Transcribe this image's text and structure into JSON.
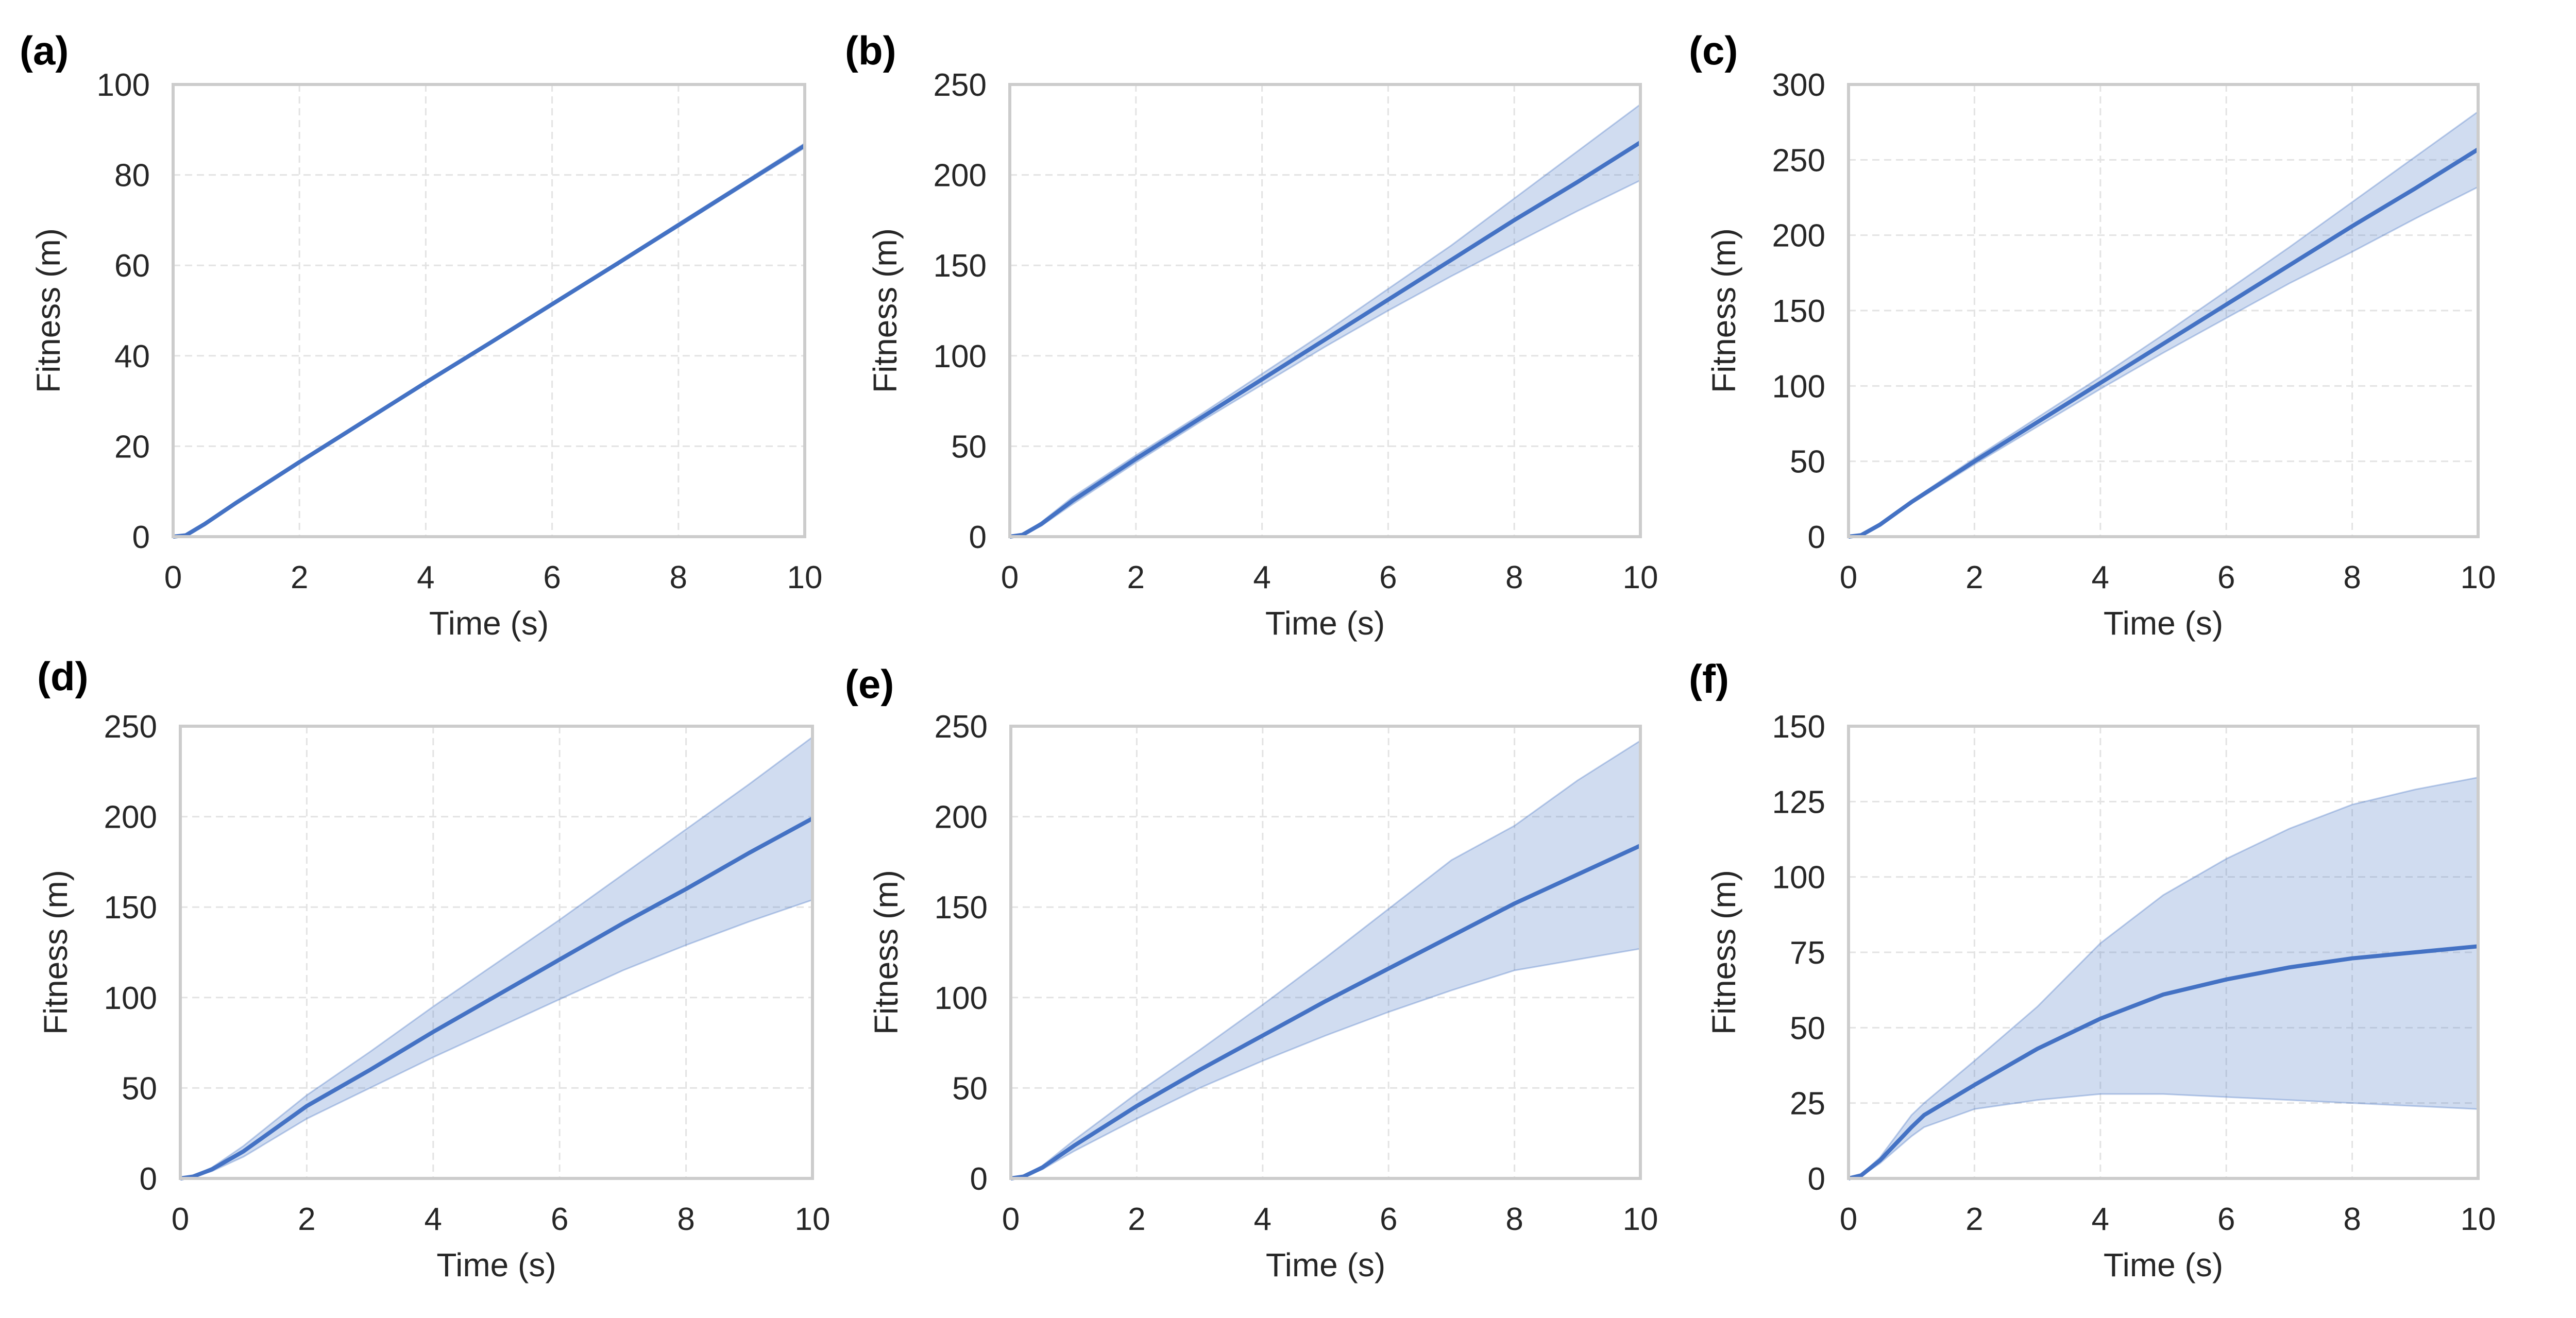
{
  "colors": {
    "line": "#4472C4",
    "band": "#4472C4",
    "grid": "#E3E3E3",
    "axis": "#CCCCCC",
    "text": "#262626"
  },
  "chart_data": [
    {
      "type": "line",
      "panel_label": "(a)",
      "xlabel": "Time (s)",
      "ylabel": "Fitness (m)",
      "xlim": [
        0,
        10
      ],
      "ylim": [
        0,
        100
      ],
      "xticks": [
        0,
        2,
        4,
        6,
        8,
        10
      ],
      "yticks": [
        0,
        20,
        40,
        60,
        80,
        100
      ],
      "grid": true,
      "series": [
        {
          "x": [
            0,
            0.2,
            0.5,
            1,
            2,
            3,
            4,
            5,
            6,
            7,
            8,
            9,
            10
          ],
          "y": [
            0,
            0.3,
            2.8,
            7.5,
            16.5,
            25.3,
            34.1,
            42.7,
            51.4,
            60.1,
            68.9,
            77.7,
            86.5
          ],
          "lower": [
            0,
            0.2,
            2.6,
            7.2,
            16.2,
            25.0,
            33.8,
            42.4,
            51.1,
            59.8,
            68.5,
            77.3,
            86.0
          ],
          "upper": [
            0,
            0.4,
            3.0,
            7.8,
            16.8,
            25.6,
            34.4,
            43.0,
            51.7,
            60.4,
            69.3,
            78.1,
            87.0
          ]
        }
      ]
    },
    {
      "type": "line",
      "panel_label": "(b)",
      "xlabel": "Time (s)",
      "ylabel": "Fitness (m)",
      "xlim": [
        0,
        10
      ],
      "ylim": [
        0,
        250
      ],
      "xticks": [
        0,
        2,
        4,
        6,
        8,
        10
      ],
      "yticks": [
        0,
        50,
        100,
        150,
        200,
        250
      ],
      "grid": true,
      "series": [
        {
          "x": [
            0,
            0.2,
            0.5,
            1,
            2,
            3,
            4,
            5,
            6,
            7,
            8,
            9,
            10
          ],
          "y": [
            0,
            1,
            7,
            20,
            43,
            65,
            87,
            109,
            131,
            153,
            175,
            196,
            218
          ],
          "lower": [
            0,
            0.8,
            6,
            18,
            41,
            63,
            84,
            105,
            125,
            144,
            162,
            180,
            197
          ],
          "upper": [
            0,
            1.2,
            8,
            22,
            45,
            67,
            90,
            113,
            137,
            161,
            187,
            213,
            239
          ]
        }
      ]
    },
    {
      "type": "line",
      "panel_label": "(c)",
      "xlabel": "Time (s)",
      "ylabel": "Fitness (m)",
      "xlim": [
        0,
        10
      ],
      "ylim": [
        0,
        300
      ],
      "xticks": [
        0,
        2,
        4,
        6,
        8,
        10
      ],
      "yticks": [
        0,
        50,
        100,
        150,
        200,
        250,
        300
      ],
      "grid": true,
      "series": [
        {
          "x": [
            0,
            0.2,
            0.5,
            1,
            2,
            3,
            4,
            5,
            6,
            7,
            8,
            9,
            10
          ],
          "y": [
            0,
            1,
            8,
            23,
            50,
            76,
            102,
            128,
            154,
            180,
            206,
            231,
            257
          ],
          "lower": [
            0,
            0.8,
            7,
            22,
            48,
            73,
            98,
            122,
            145,
            168,
            189,
            211,
            232
          ],
          "upper": [
            0,
            1.2,
            9,
            24,
            52,
            79,
            106,
            134,
            163,
            192,
            222,
            252,
            282
          ]
        }
      ]
    },
    {
      "type": "line",
      "panel_label": "(d)",
      "xlabel": "Time (s)",
      "ylabel": "Fitness (m)",
      "xlim": [
        0,
        10
      ],
      "ylim": [
        0,
        250
      ],
      "xticks": [
        0,
        2,
        4,
        6,
        8,
        10
      ],
      "yticks": [
        0,
        50,
        100,
        150,
        200,
        250
      ],
      "grid": true,
      "series": [
        {
          "x": [
            0,
            0.2,
            0.5,
            1,
            2,
            3,
            4,
            5,
            6,
            7,
            8,
            9,
            10
          ],
          "y": [
            0,
            1,
            5,
            15,
            40,
            60,
            81,
            101,
            121,
            141,
            160,
            180,
            199
          ],
          "lower": [
            0,
            0.8,
            4,
            12,
            33,
            50,
            67,
            83,
            99,
            115,
            129,
            142,
            154
          ],
          "upper": [
            0,
            1.2,
            6,
            18,
            46,
            70,
            95,
            119,
            143,
            168,
            193,
            218,
            244
          ]
        }
      ]
    },
    {
      "type": "line",
      "panel_label": "(e)",
      "xlabel": "Time (s)",
      "ylabel": "Fitness (m)",
      "xlim": [
        0,
        10
      ],
      "ylim": [
        0,
        250
      ],
      "xticks": [
        0,
        2,
        4,
        6,
        8,
        10
      ],
      "yticks": [
        0,
        50,
        100,
        150,
        200,
        250
      ],
      "grid": true,
      "series": [
        {
          "x": [
            0,
            0.2,
            0.5,
            1,
            2,
            3,
            4,
            5,
            6,
            7,
            8,
            9,
            10
          ],
          "y": [
            0,
            1,
            6,
            18,
            40,
            60,
            79,
            98,
            116,
            134,
            152,
            168,
            184
          ],
          "lower": [
            0,
            0.8,
            5,
            15,
            33,
            50,
            65,
            79,
            92,
            104,
            115,
            121,
            127
          ],
          "upper": [
            0,
            1.2,
            7,
            21,
            47,
            71,
            96,
            122,
            149,
            176,
            195,
            220,
            242
          ]
        }
      ]
    },
    {
      "type": "line",
      "panel_label": "(f)",
      "xlabel": "Time (s)",
      "ylabel": "Fitness (m)",
      "xlim": [
        0,
        10
      ],
      "ylim": [
        0,
        150
      ],
      "xticks": [
        0,
        2,
        4,
        6,
        8,
        10
      ],
      "yticks": [
        0,
        25,
        50,
        75,
        100,
        125,
        150
      ],
      "grid": true,
      "series": [
        {
          "x": [
            0,
            0.2,
            0.5,
            1,
            1.2,
            2,
            3,
            4,
            5,
            6,
            7,
            8,
            9,
            10
          ],
          "y": [
            0,
            1,
            6,
            17,
            21,
            31,
            43,
            53,
            61,
            66,
            70,
            73,
            75,
            77
          ],
          "lower": [
            0,
            0.8,
            5,
            14,
            17,
            23,
            26,
            28,
            28,
            27,
            26,
            25,
            24,
            23
          ],
          "upper": [
            0,
            1.2,
            7,
            21,
            25,
            39,
            57,
            78,
            94,
            106,
            116,
            124,
            129,
            133
          ]
        }
      ]
    }
  ]
}
